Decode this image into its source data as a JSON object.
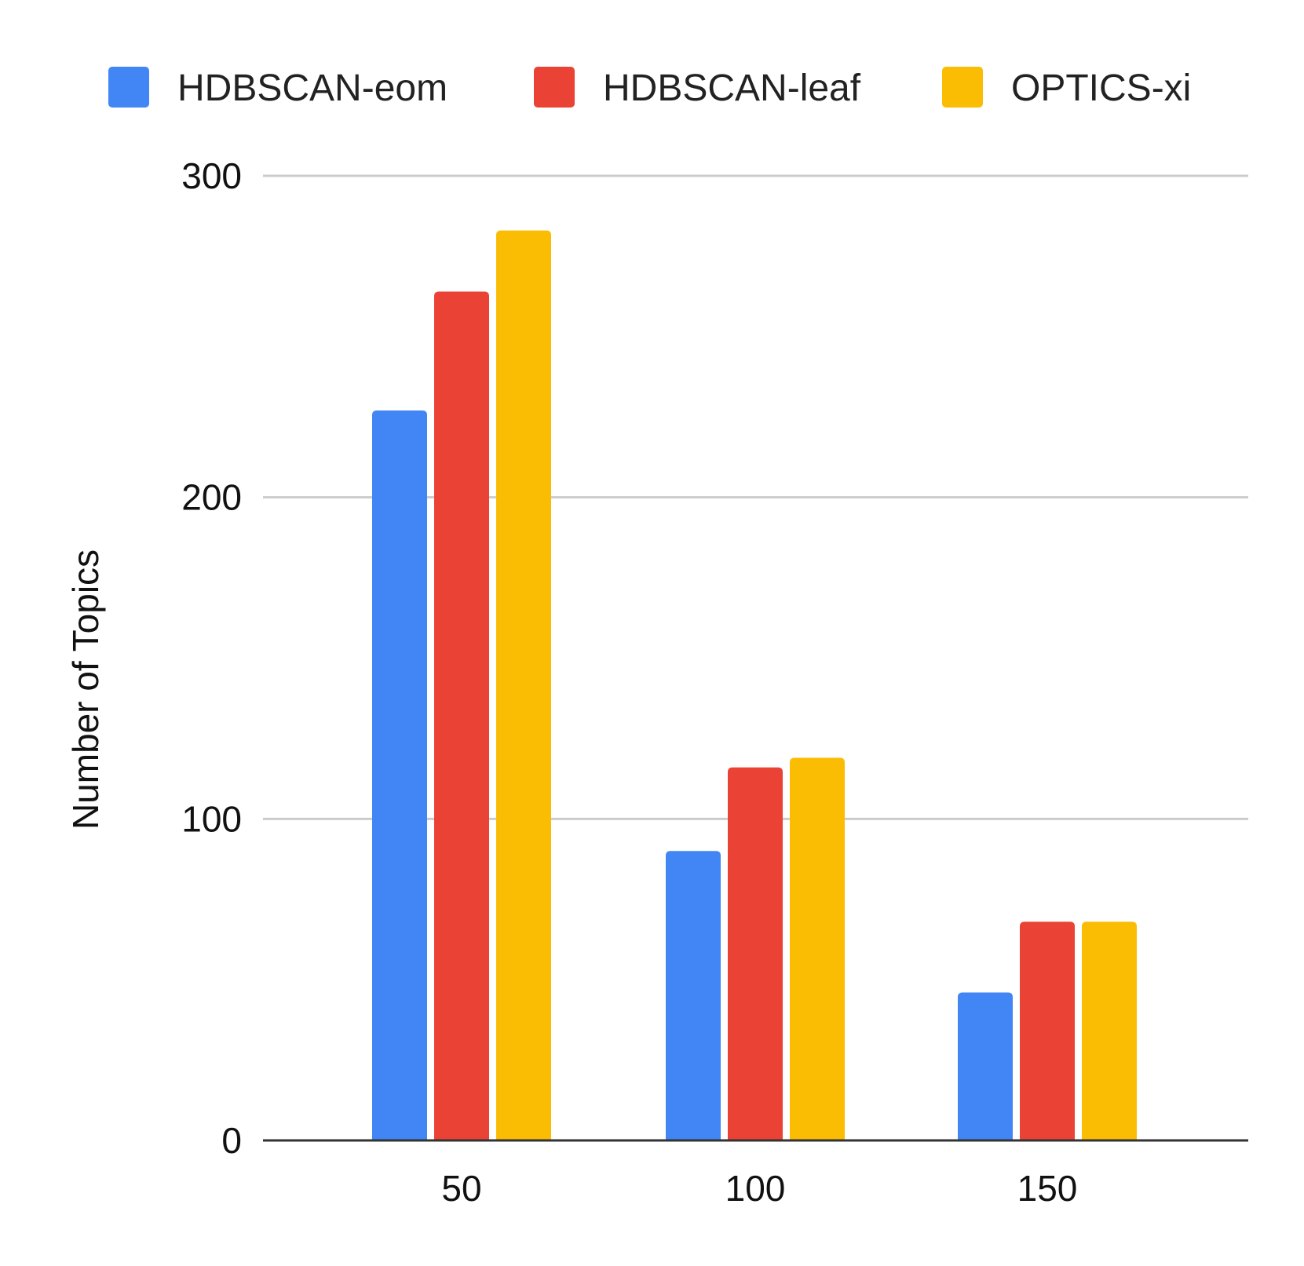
{
  "chart_data": {
    "type": "bar",
    "categories": [
      "50",
      "100",
      "150"
    ],
    "series": [
      {
        "name": "HDBSCAN-eom",
        "color": "#4285F4",
        "values": [
          227,
          90,
          46
        ]
      },
      {
        "name": "HDBSCAN-leaf",
        "color": "#EA4335",
        "values": [
          264,
          116,
          68
        ]
      },
      {
        "name": "OPTICS-xi",
        "color": "#FBBC04",
        "values": [
          283,
          119,
          68
        ]
      }
    ],
    "title": "",
    "xlabel": "",
    "ylabel": "Number of Topics",
    "ylim": [
      0,
      300
    ],
    "yticks": [
      "0",
      "100",
      "200",
      "300"
    ],
    "grid": true,
    "legend_position": "top"
  }
}
